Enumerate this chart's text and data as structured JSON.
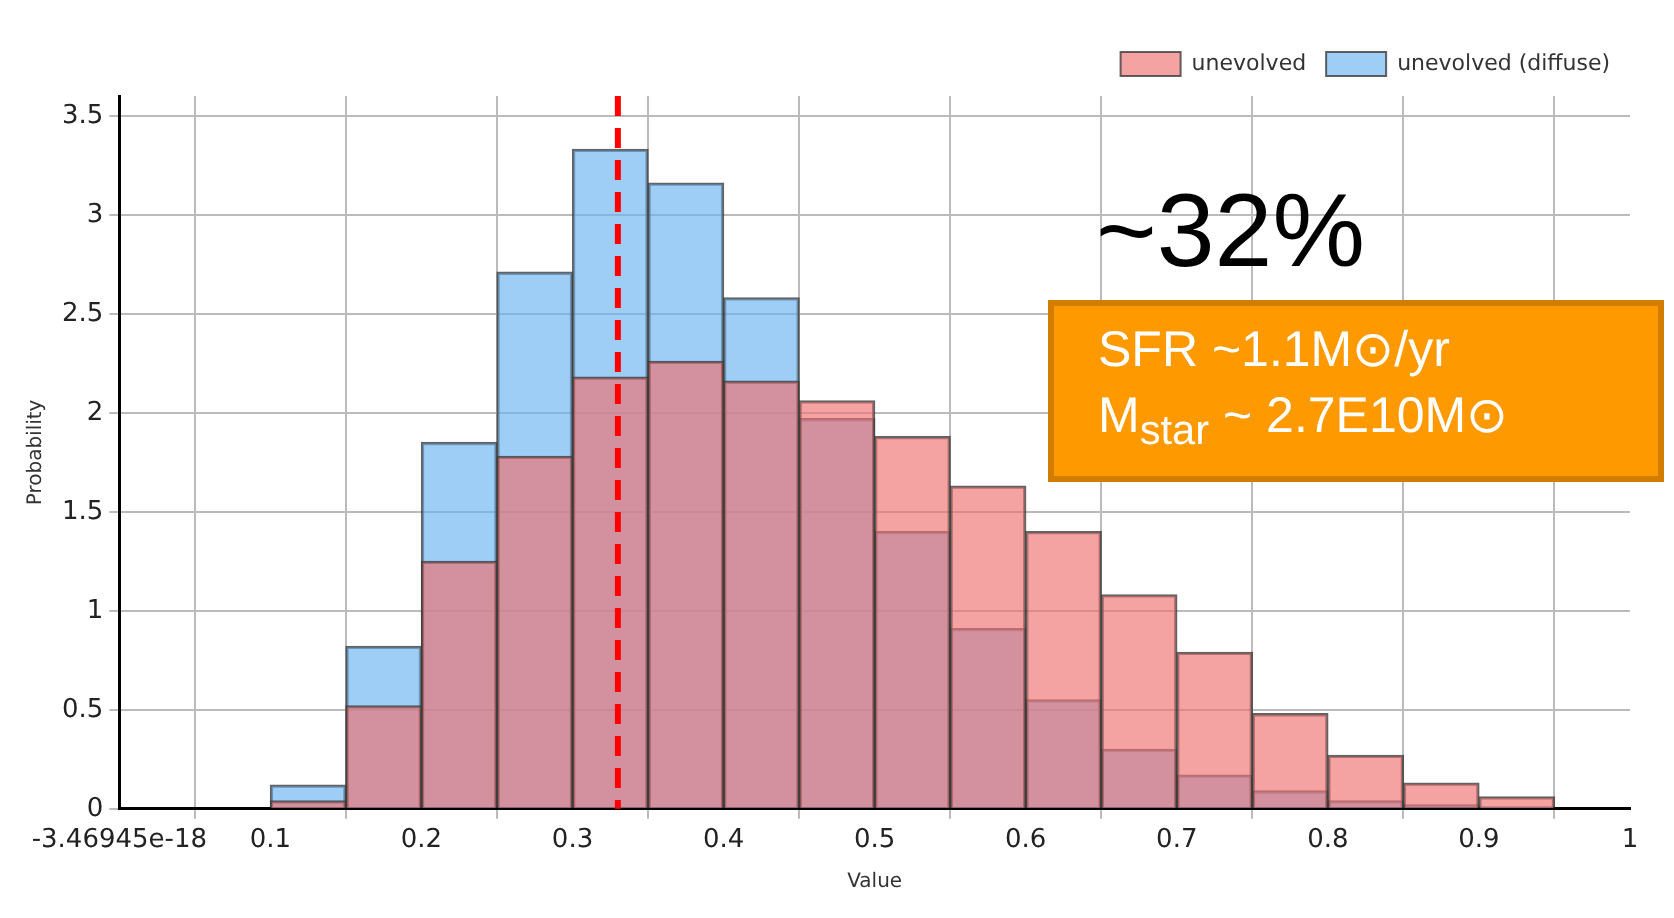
{
  "chart_data": {
    "type": "histogram",
    "xlabel": "Value",
    "ylabel": "Probability",
    "bins": [
      0,
      0.05,
      0.1,
      0.15,
      0.2,
      0.25,
      0.3,
      0.35,
      0.4,
      0.45,
      0.5,
      0.55,
      0.6,
      0.65,
      0.7,
      0.75,
      0.8,
      0.85,
      0.9,
      0.95,
      1
    ],
    "series": [
      {
        "name": "unevolved",
        "color": "#f07070",
        "values": [
          0,
          0,
          0.04,
          0.52,
          1.25,
          1.78,
          2.18,
          2.26,
          2.16,
          2.06,
          1.88,
          1.63,
          1.4,
          1.08,
          0.79,
          0.48,
          0.27,
          0.13,
          0.06,
          0
        ]
      },
      {
        "name": "unevolved (diffuse)",
        "color": "#6ab4f0",
        "values": [
          0,
          0,
          0.12,
          0.82,
          1.85,
          2.71,
          3.33,
          3.16,
          2.58,
          1.97,
          1.4,
          0.91,
          0.55,
          0.3,
          0.17,
          0.09,
          0.04,
          0.02,
          0.01,
          0
        ]
      }
    ],
    "xlim": [
      0,
      1
    ],
    "xticks": [
      {
        "value": 0,
        "label": "-3.46945e-18"
      },
      0.1,
      0.2,
      0.3,
      0.4,
      0.5,
      0.6,
      0.7,
      0.8,
      0.9,
      1
    ],
    "ylim": [
      0,
      3.6
    ],
    "yticks": [
      0,
      0.5,
      1,
      1.5,
      2,
      2.5,
      3,
      3.5
    ],
    "ref_lines": [
      {
        "axis": "x",
        "value": 0.33,
        "color": "#ff0000",
        "line_style": "dashed"
      }
    ],
    "annotations": [
      "~32%",
      "SFR ~1.1M⊙/yr",
      "M$_{star}$ ~ 2.7E10M⊙"
    ],
    "grid": true,
    "legend": "top right"
  }
}
